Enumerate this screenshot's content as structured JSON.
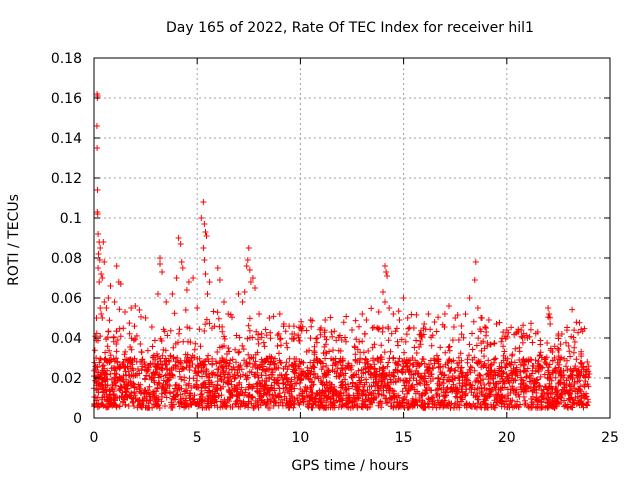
{
  "chart_data": {
    "type": "scatter",
    "title": "Day 165 of 2022, Rate Of TEC Index for receiver hil1",
    "xlabel": "GPS time / hours",
    "ylabel": "ROTI / TECUs",
    "xlim": [
      0,
      25
    ],
    "ylim": [
      0,
      0.18
    ],
    "xticks": [
      0,
      5,
      10,
      15,
      20,
      25
    ],
    "xtick_labels": [
      "0",
      "5",
      "10",
      "15",
      "20",
      "25"
    ],
    "yticks": [
      0,
      0.02,
      0.04,
      0.06,
      0.08,
      0.1,
      0.12,
      0.14,
      0.16,
      0.18
    ],
    "ytick_labels": [
      "0",
      "0.02",
      "0.04",
      "0.06",
      "0.08",
      "0.1",
      "0.12",
      "0.14",
      "0.16",
      "0.18"
    ],
    "grid": true,
    "marker": "+",
    "color": "#ff0000",
    "x_data_extent": [
      0,
      24
    ],
    "dense_band": {
      "y_range": [
        0.005,
        0.03
      ],
      "note_free": true
    },
    "points": [
      [
        0.05,
        0.021
      ],
      [
        0.1,
        0.03
      ],
      [
        0.12,
        0.05
      ],
      [
        0.15,
        0.162
      ],
      [
        0.16,
        0.16
      ],
      [
        0.18,
        0.161
      ],
      [
        0.14,
        0.146
      ],
      [
        0.15,
        0.135
      ],
      [
        0.17,
        0.114
      ],
      [
        0.16,
        0.103
      ],
      [
        0.18,
        0.102
      ],
      [
        0.2,
        0.092
      ],
      [
        0.25,
        0.088
      ],
      [
        0.3,
        0.085
      ],
      [
        0.22,
        0.082
      ],
      [
        0.28,
        0.079
      ],
      [
        0.2,
        0.075
      ],
      [
        0.35,
        0.072
      ],
      [
        0.4,
        0.07
      ],
      [
        0.25,
        0.068
      ],
      [
        0.45,
        0.088
      ],
      [
        0.5,
        0.078
      ],
      [
        0.3,
        0.055
      ],
      [
        0.35,
        0.052
      ],
      [
        0.4,
        0.05
      ],
      [
        0.5,
        0.058
      ],
      [
        0.6,
        0.055
      ],
      [
        0.7,
        0.06
      ],
      [
        0.8,
        0.066
      ],
      [
        1.1,
        0.076
      ],
      [
        1.2,
        0.068
      ],
      [
        1.3,
        0.067
      ],
      [
        1.0,
        0.058
      ],
      [
        1.5,
        0.053
      ],
      [
        1.8,
        0.055
      ],
      [
        2.0,
        0.056
      ],
      [
        2.2,
        0.054
      ],
      [
        2.5,
        0.05
      ],
      [
        3.2,
        0.08
      ],
      [
        3.2,
        0.077
      ],
      [
        3.3,
        0.073
      ],
      [
        3.1,
        0.062
      ],
      [
        3.5,
        0.058
      ],
      [
        3.8,
        0.062
      ],
      [
        4.0,
        0.07
      ],
      [
        4.1,
        0.09
      ],
      [
        4.2,
        0.087
      ],
      [
        4.25,
        0.078
      ],
      [
        4.3,
        0.075
      ],
      [
        4.5,
        0.064
      ],
      [
        4.6,
        0.068
      ],
      [
        4.8,
        0.07
      ],
      [
        5.0,
        0.055
      ],
      [
        5.2,
        0.1
      ],
      [
        5.3,
        0.108
      ],
      [
        5.35,
        0.097
      ],
      [
        5.4,
        0.093
      ],
      [
        5.45,
        0.091
      ],
      [
        5.3,
        0.085
      ],
      [
        5.35,
        0.079
      ],
      [
        5.4,
        0.072
      ],
      [
        5.5,
        0.062
      ],
      [
        5.6,
        0.068
      ],
      [
        6.0,
        0.075
      ],
      [
        6.1,
        0.069
      ],
      [
        6.3,
        0.058
      ],
      [
        6.5,
        0.052
      ],
      [
        7.0,
        0.062
      ],
      [
        7.2,
        0.058
      ],
      [
        7.3,
        0.063
      ],
      [
        7.4,
        0.076
      ],
      [
        7.45,
        0.079
      ],
      [
        7.5,
        0.085
      ],
      [
        7.55,
        0.074
      ],
      [
        7.6,
        0.068
      ],
      [
        7.7,
        0.07
      ],
      [
        7.8,
        0.065
      ],
      [
        8.0,
        0.052
      ],
      [
        8.5,
        0.05
      ],
      [
        9.0,
        0.052
      ],
      [
        9.2,
        0.047
      ],
      [
        9.6,
        0.042
      ],
      [
        10.0,
        0.045
      ],
      [
        10.5,
        0.049
      ],
      [
        11.0,
        0.045
      ],
      [
        11.2,
        0.049
      ],
      [
        11.5,
        0.043
      ],
      [
        12.0,
        0.039
      ],
      [
        12.5,
        0.044
      ],
      [
        13.0,
        0.052
      ],
      [
        13.2,
        0.049
      ],
      [
        13.5,
        0.045
      ],
      [
        13.8,
        0.053
      ],
      [
        14.0,
        0.063
      ],
      [
        14.1,
        0.076
      ],
      [
        14.15,
        0.073
      ],
      [
        14.2,
        0.071
      ],
      [
        14.1,
        0.058
      ],
      [
        14.3,
        0.055
      ],
      [
        14.5,
        0.052
      ],
      [
        14.8,
        0.049
      ],
      [
        15.0,
        0.06
      ],
      [
        15.2,
        0.05
      ],
      [
        15.5,
        0.045
      ],
      [
        16.0,
        0.047
      ],
      [
        16.2,
        0.052
      ],
      [
        16.5,
        0.048
      ],
      [
        17.0,
        0.052
      ],
      [
        17.2,
        0.056
      ],
      [
        17.5,
        0.05
      ],
      [
        17.8,
        0.046
      ],
      [
        18.0,
        0.052
      ],
      [
        18.2,
        0.06
      ],
      [
        18.5,
        0.078
      ],
      [
        18.45,
        0.069
      ],
      [
        18.6,
        0.055
      ],
      [
        18.8,
        0.05
      ],
      [
        19.0,
        0.043
      ],
      [
        19.5,
        0.047
      ],
      [
        20.0,
        0.044
      ],
      [
        20.5,
        0.043
      ],
      [
        21.0,
        0.04
      ],
      [
        21.5,
        0.043
      ],
      [
        22.0,
        0.055
      ],
      [
        22.05,
        0.052
      ],
      [
        22.1,
        0.047
      ],
      [
        22.5,
        0.042
      ],
      [
        23.0,
        0.036
      ],
      [
        23.3,
        0.038
      ],
      [
        23.6,
        0.032
      ],
      [
        23.9,
        0.028
      ],
      [
        24.0,
        0.022
      ]
    ]
  }
}
